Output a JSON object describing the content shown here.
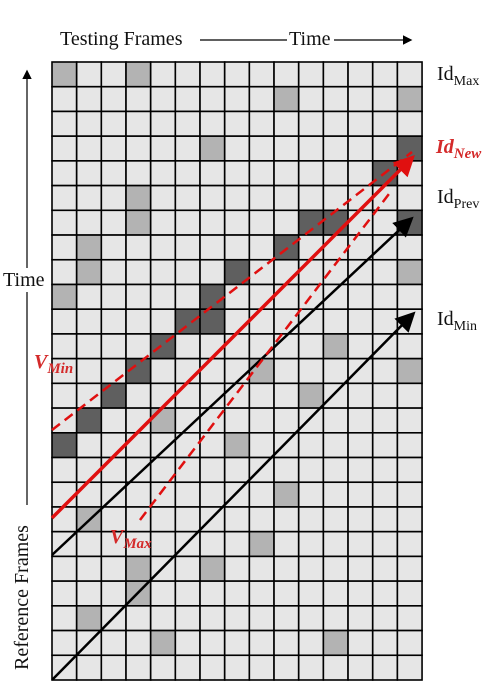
{
  "header": {
    "testing": "Testing Frames",
    "time": "Time"
  },
  "left": {
    "time": "Time",
    "reference": "Reference Frames"
  },
  "labels": {
    "id_max": {
      "base": "Id",
      "sub": "Max"
    },
    "id_new": {
      "base": "Id",
      "sub": "New"
    },
    "id_prev": {
      "base": "Id",
      "sub": "Prev"
    },
    "id_min": {
      "base": "Id",
      "sub": "Min"
    },
    "v_min": {
      "base": "V",
      "sub": "Min"
    },
    "v_max": {
      "base": "V",
      "sub": "Max"
    }
  }
}
